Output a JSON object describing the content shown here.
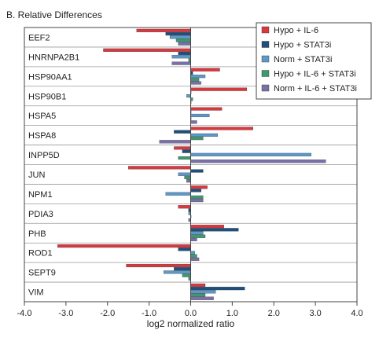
{
  "chart_data": {
    "type": "bar",
    "orientation": "horizontal",
    "title": "B. Relative Differences",
    "xlabel": "log2 normalized ratio",
    "xlim": [
      -4.0,
      4.0
    ],
    "xticks": [
      "-4.0",
      "-3.0",
      "-2.0",
      "-1.0",
      "0.0",
      "1.0",
      "2.0",
      "3.0",
      "4.0"
    ],
    "legend_position": "top-right",
    "grid": false,
    "categories": [
      "EEF2",
      "HNRNPA2B1",
      "HSP90AA1",
      "HSP90B1",
      "HSPA5",
      "HSPA8",
      "INPP5D",
      "JUN",
      "NPM1",
      "PDIA3",
      "PHB",
      "ROD1",
      "SEPT9",
      "VIM"
    ],
    "series": [
      {
        "name": "Hypo + IL-6",
        "color": "#d9383f",
        "values": [
          -1.3,
          -2.1,
          0.7,
          1.35,
          0.75,
          1.5,
          -0.4,
          -1.5,
          0.4,
          -0.3,
          0.8,
          -3.2,
          -1.55,
          0.35
        ]
      },
      {
        "name": "Hypo + STAT3i",
        "color": "#1f4f7d",
        "values": [
          -0.6,
          -0.3,
          0.05,
          0.0,
          0.0,
          -0.4,
          -0.2,
          0.3,
          0.25,
          -0.05,
          1.15,
          -0.3,
          -0.4,
          1.3
        ]
      },
      {
        "name": "Norm + STAT3i",
        "color": "#5c98c8",
        "values": [
          -0.5,
          -0.45,
          0.35,
          -0.1,
          0.45,
          0.65,
          2.9,
          -0.3,
          -0.6,
          -0.05,
          0.3,
          0.1,
          -0.65,
          0.6
        ]
      },
      {
        "name": "Hypo + IL-6 + STAT3i",
        "color": "#3d9a6e",
        "values": [
          -0.35,
          -0.05,
          0.2,
          0.05,
          0.0,
          0.3,
          -0.3,
          -0.15,
          0.3,
          0.0,
          0.35,
          0.15,
          -0.2,
          0.35
        ]
      },
      {
        "name": "Norm + IL-6 + STAT3i",
        "color": "#7a6fa8",
        "values": [
          -0.3,
          -0.45,
          0.25,
          0.0,
          0.15,
          -0.75,
          3.25,
          -0.1,
          0.3,
          -0.05,
          0.15,
          0.2,
          -0.05,
          0.55
        ]
      }
    ]
  }
}
